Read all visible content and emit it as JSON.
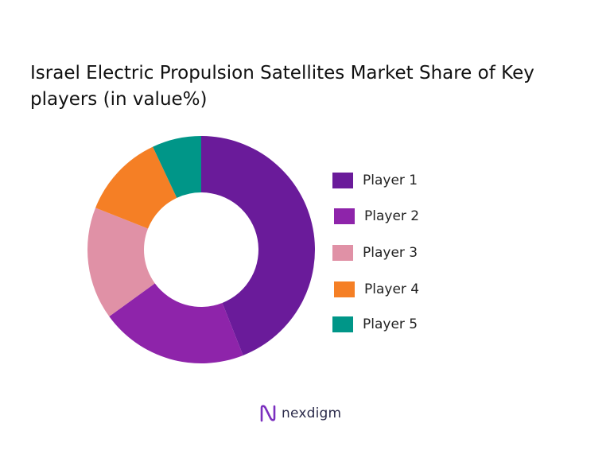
{
  "chart_data": {
    "type": "pie",
    "title": "Israel Electric Propulsion Satellites Market Share of Key players (in value%)",
    "donut": true,
    "categories": [
      "Player 1",
      "Player 2",
      "Player 3",
      "Player 4",
      "Player 5"
    ],
    "values": [
      44,
      21,
      16,
      12,
      7
    ],
    "colors": [
      "#6a1b9a",
      "#8e24aa",
      "#e091a6",
      "#f57f25",
      "#009688"
    ],
    "legend_position": "right"
  },
  "brand": {
    "name": "nexdigm",
    "logo_color": "#7b2fbe"
  }
}
